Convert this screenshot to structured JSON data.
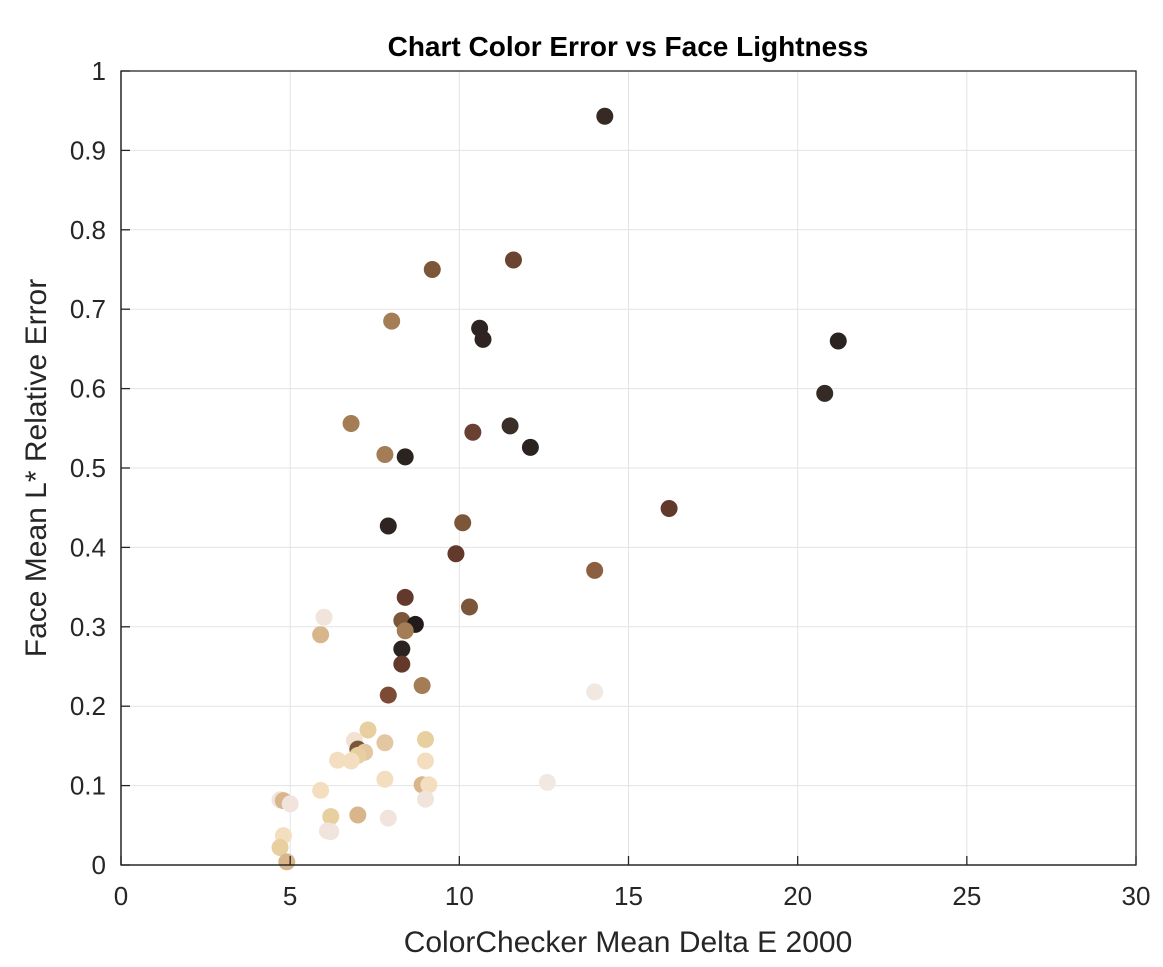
{
  "chart_data": {
    "type": "scatter",
    "title": "Chart Color Error vs Face Lightness",
    "xlabel": "ColorChecker Mean Delta E 2000",
    "ylabel": "Face Mean L* Relative Error",
    "xlim": [
      0,
      30
    ],
    "ylim": [
      0,
      1
    ],
    "x_ticks": [
      "0",
      "5",
      "10",
      "15",
      "20",
      "25",
      "30"
    ],
    "y_ticks": [
      "0",
      "0.1",
      "0.2",
      "0.3",
      "0.4",
      "0.5",
      "0.6",
      "0.7",
      "0.8",
      "0.9",
      "1"
    ],
    "grid": true,
    "points": [
      {
        "x": 14.3,
        "y": 0.943,
        "color": "#352a24"
      },
      {
        "x": 9.2,
        "y": 0.75,
        "color": "#7c5638"
      },
      {
        "x": 11.6,
        "y": 0.762,
        "color": "#6a4431"
      },
      {
        "x": 8.0,
        "y": 0.685,
        "color": "#a47c55"
      },
      {
        "x": 10.6,
        "y": 0.676,
        "color": "#2e2522"
      },
      {
        "x": 10.7,
        "y": 0.662,
        "color": "#2e2522"
      },
      {
        "x": 21.2,
        "y": 0.66,
        "color": "#2b2320"
      },
      {
        "x": 20.8,
        "y": 0.594,
        "color": "#342a26"
      },
      {
        "x": 6.8,
        "y": 0.556,
        "color": "#a47c55"
      },
      {
        "x": 11.5,
        "y": 0.553,
        "color": "#3a2e29"
      },
      {
        "x": 10.4,
        "y": 0.545,
        "color": "#6a4033"
      },
      {
        "x": 12.1,
        "y": 0.526,
        "color": "#2b2320"
      },
      {
        "x": 7.8,
        "y": 0.517,
        "color": "#a47c55"
      },
      {
        "x": 8.4,
        "y": 0.514,
        "color": "#2b2320"
      },
      {
        "x": 16.2,
        "y": 0.449,
        "color": "#63392c"
      },
      {
        "x": 10.1,
        "y": 0.431,
        "color": "#7c5638"
      },
      {
        "x": 7.9,
        "y": 0.427,
        "color": "#2e2522"
      },
      {
        "x": 9.9,
        "y": 0.392,
        "color": "#63392c"
      },
      {
        "x": 14.0,
        "y": 0.371,
        "color": "#8a6040"
      },
      {
        "x": 8.4,
        "y": 0.337,
        "color": "#63392c"
      },
      {
        "x": 10.3,
        "y": 0.325,
        "color": "#7c5638"
      },
      {
        "x": 6.0,
        "y": 0.312,
        "color": "#f0e4dc"
      },
      {
        "x": 8.3,
        "y": 0.308,
        "color": "#7c5638"
      },
      {
        "x": 8.7,
        "y": 0.303,
        "color": "#211c1a"
      },
      {
        "x": 8.4,
        "y": 0.295,
        "color": "#a47c55"
      },
      {
        "x": 5.9,
        "y": 0.29,
        "color": "#d9b58c"
      },
      {
        "x": 8.3,
        "y": 0.272,
        "color": "#2b2320"
      },
      {
        "x": 8.3,
        "y": 0.253,
        "color": "#63392c"
      },
      {
        "x": 8.9,
        "y": 0.226,
        "color": "#a47c55"
      },
      {
        "x": 14.0,
        "y": 0.218,
        "color": "#f2e8e2"
      },
      {
        "x": 7.9,
        "y": 0.214,
        "color": "#7c4a35"
      },
      {
        "x": 7.3,
        "y": 0.17,
        "color": "#e8cf9f"
      },
      {
        "x": 9.0,
        "y": 0.158,
        "color": "#e8cf9f"
      },
      {
        "x": 6.9,
        "y": 0.157,
        "color": "#f2e2d4"
      },
      {
        "x": 7.8,
        "y": 0.154,
        "color": "#e3c7a2"
      },
      {
        "x": 7.0,
        "y": 0.146,
        "color": "#7c5638"
      },
      {
        "x": 7.2,
        "y": 0.142,
        "color": "#e3c7a2"
      },
      {
        "x": 7.0,
        "y": 0.138,
        "color": "#e8cf9f"
      },
      {
        "x": 6.4,
        "y": 0.132,
        "color": "#f3dfbf"
      },
      {
        "x": 6.8,
        "y": 0.131,
        "color": "#f3dfbf"
      },
      {
        "x": 9.0,
        "y": 0.131,
        "color": "#f3dfbf"
      },
      {
        "x": 7.8,
        "y": 0.108,
        "color": "#f3dfbf"
      },
      {
        "x": 12.6,
        "y": 0.104,
        "color": "#f2e8e2"
      },
      {
        "x": 8.9,
        "y": 0.101,
        "color": "#d9b58c"
      },
      {
        "x": 9.1,
        "y": 0.101,
        "color": "#f3dfbf"
      },
      {
        "x": 5.9,
        "y": 0.094,
        "color": "#f3dfbf"
      },
      {
        "x": 9.0,
        "y": 0.083,
        "color": "#f0e4dc"
      },
      {
        "x": 4.7,
        "y": 0.082,
        "color": "#f0e4dc"
      },
      {
        "x": 4.8,
        "y": 0.081,
        "color": "#d9b58c"
      },
      {
        "x": 5.0,
        "y": 0.077,
        "color": "#f0e4dc"
      },
      {
        "x": 7.0,
        "y": 0.063,
        "color": "#d9b58c"
      },
      {
        "x": 6.2,
        "y": 0.061,
        "color": "#e8cf9f"
      },
      {
        "x": 7.9,
        "y": 0.059,
        "color": "#f0e4dc"
      },
      {
        "x": 6.1,
        "y": 0.043,
        "color": "#f0e4dc"
      },
      {
        "x": 6.2,
        "y": 0.042,
        "color": "#f0e4dc"
      },
      {
        "x": 4.8,
        "y": 0.037,
        "color": "#f3dfbf"
      },
      {
        "x": 4.7,
        "y": 0.022,
        "color": "#e8cf9f"
      },
      {
        "x": 4.9,
        "y": 0.004,
        "color": "#d9b58c"
      }
    ]
  }
}
